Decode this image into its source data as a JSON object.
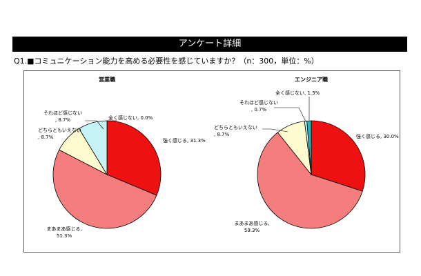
{
  "header": {
    "title": "アンケート詳細"
  },
  "question": {
    "text": "Q1.■コミュニケーション能力を高める必要性を感じていますか？（n：300，単位：%）"
  },
  "colors": {
    "strong": "#ee1111",
    "somewhat": "#f47e7e",
    "neither": "#fdfbcf",
    "not_much": "#c6f4f6",
    "not_at_all": "#25b7b7",
    "outline": "#000000"
  },
  "chart_data": [
    {
      "type": "pie",
      "title": "営業職",
      "slices": [
        {
          "key": "strong",
          "label": "強く感じる, 31.3%",
          "value": 31.3
        },
        {
          "key": "somewhat",
          "label": "まあまあ感じる, 51.3%",
          "value": 51.3
        },
        {
          "key": "neither",
          "label": "どちらともいえない, 8.7%",
          "value": 8.7
        },
        {
          "key": "not_much",
          "label": "それほど感じない, 8.7%",
          "value": 8.7
        },
        {
          "key": "not_at_all",
          "label": "全く感じない, 0.0%",
          "value": 0.0
        }
      ]
    },
    {
      "type": "pie",
      "title": "エンジニア職",
      "slices": [
        {
          "key": "strong",
          "label": "強く感じる, 30.0%",
          "value": 30.0
        },
        {
          "key": "somewhat",
          "label": "まあまあ感じる, 59.3%",
          "value": 59.3
        },
        {
          "key": "neither",
          "label": "どちらともいえない, 8.7%",
          "value": 8.7
        },
        {
          "key": "not_much",
          "label": "それほど感じない, 0.7%",
          "value": 0.7
        },
        {
          "key": "not_at_all",
          "label": "全く感じない, 1.3%",
          "value": 1.3
        }
      ]
    }
  ]
}
